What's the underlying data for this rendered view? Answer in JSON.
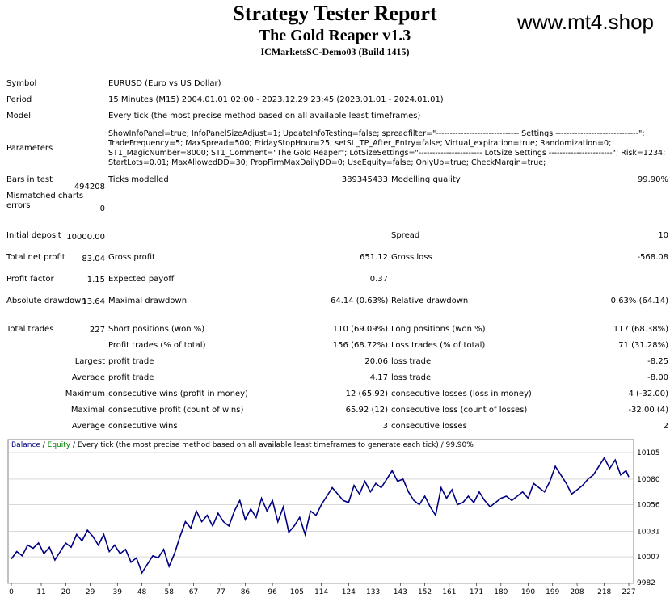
{
  "header": {
    "title": "Strategy Tester Report",
    "subtitle": "The Gold Reaper v1.3",
    "server": "ICMarketsSC-Demo03 (Build 1415)",
    "site": "www.mt4.shop"
  },
  "info": {
    "symbol_label": "Symbol",
    "symbol": "EURUSD (Euro vs US Dollar)",
    "period_label": "Period",
    "period": "15 Minutes (M15) 2004.01.01 02:00 - 2023.12.29 23:45 (2023.01.01 - 2024.01.01)",
    "model_label": "Model",
    "model": "Every tick (the most precise method based on all available least timeframes)",
    "params_label": "Parameters",
    "params": "ShowInfoPanel=true; InfoPanelSizeAdjust=1; UpdateInfoTesting=false; spreadfilter=\"------------------------------ Settings ------------------------------\"; TradeFrequency=5; MaxSpread=500; FridayStopHour=25; setSL_TP_After_Entry=false; Virtual_expiration=true; Randomization=0; ST1_MagicNumber=8000; ST1_Comment=\"The Gold Reaper\"; LotSizeSettings=\"----------------------- LotSize Settings -----------------------\"; Risk=1234; StartLots=0.01; MaxAllowedDD=30; PropFirmMaxDailyDD=0; UseEquity=false; OnlyUp=true; CheckMargin=true;"
  },
  "stats": {
    "bars_label": "Bars in test",
    "bars": "494208",
    "ticks_label": "Ticks modelled",
    "ticks": "389345433",
    "quality_label": "Modelling quality",
    "quality": "99.90%",
    "mismatch_label": "Mismatched charts errors",
    "mismatch": "0",
    "deposit_label": "Initial deposit",
    "deposit": "10000.00",
    "spread_label": "Spread",
    "spread": "10",
    "net_label": "Total net profit",
    "net": "83.04",
    "gross_profit_label": "Gross profit",
    "gross_profit": "651.12",
    "gross_loss_label": "Gross loss",
    "gross_loss": "-568.08",
    "pf_label": "Profit factor",
    "pf": "1.15",
    "payoff_label": "Expected payoff",
    "payoff": "0.37",
    "abs_dd_label": "Absolute drawdown",
    "abs_dd": "13.64",
    "max_dd_label": "Maximal drawdown",
    "max_dd": "64.14 (0.63%)",
    "rel_dd_label": "Relative drawdown",
    "rel_dd": "0.63% (64.14)",
    "trades_label": "Total trades",
    "trades": "227",
    "short_label": "Short positions (won %)",
    "short": "110 (69.09%)",
    "long_label": "Long positions (won %)",
    "long": "117 (68.38%)",
    "profit_trades_label": "Profit trades (% of total)",
    "profit_trades": "156 (68.72%)",
    "loss_trades_label": "Loss trades (% of total)",
    "loss_trades": "71 (31.28%)",
    "largest_label": "Largest",
    "largest_profit_label": "profit trade",
    "largest_profit": "20.06",
    "largest_loss_label": "loss trade",
    "largest_loss": "-8.25",
    "average_label": "Average",
    "avg_profit_label": "profit trade",
    "avg_profit": "4.17",
    "avg_loss_label": "loss trade",
    "avg_loss": "-8.00",
    "maximum_label": "Maximum",
    "max_wins_label": "consecutive wins (profit in money)",
    "max_wins": "12 (65.92)",
    "max_losses_label": "consecutive losses (loss in money)",
    "max_losses": "4 (-32.00)",
    "maximal_label": "Maximal",
    "maximal_profit_label": "consecutive profit (count of wins)",
    "maximal_profit": "65.92 (12)",
    "maximal_loss_label": "consecutive loss (count of losses)",
    "maximal_loss": "-32.00 (4)",
    "average2_label": "Average",
    "avg_wins_label": "consecutive wins",
    "avg_wins": "3",
    "avg_losses_label": "consecutive losses",
    "avg_losses": "2"
  },
  "chart_data": {
    "type": "line",
    "legend_balance": "Balance",
    "legend_sep1": " / ",
    "legend_equity": "Equity",
    "legend_rest": " / Every tick (the most precise method based on all available least timeframes to generate each tick) / 99.90%",
    "xticks": [
      "0",
      "11",
      "20",
      "29",
      "39",
      "48",
      "58",
      "67",
      "77",
      "86",
      "96",
      "105",
      "114",
      "124",
      "133",
      "143",
      "152",
      "161",
      "171",
      "180",
      "190",
      "199",
      "208",
      "218",
      "227"
    ],
    "yticks": [
      "10105",
      "10080",
      "10056",
      "10031",
      "10007",
      "9982"
    ],
    "ylim": [
      9982,
      10105
    ],
    "xlim": [
      0,
      227
    ],
    "colors": {
      "balance": "#000080",
      "equity": "#008000",
      "grid": "#c0c0c0"
    },
    "series": [
      {
        "name": "Balance",
        "x": [
          0,
          2,
          4,
          6,
          8,
          10,
          12,
          14,
          16,
          18,
          20,
          22,
          24,
          26,
          28,
          30,
          32,
          34,
          36,
          38,
          40,
          42,
          44,
          46,
          48,
          50,
          52,
          54,
          56,
          58,
          60,
          62,
          64,
          66,
          68,
          70,
          72,
          74,
          76,
          78,
          80,
          82,
          84,
          86,
          88,
          90,
          92,
          94,
          96,
          98,
          100,
          102,
          104,
          106,
          108,
          110,
          112,
          114,
          116,
          118,
          120,
          122,
          124,
          126,
          128,
          130,
          132,
          134,
          136,
          138,
          140,
          142,
          144,
          146,
          148,
          150,
          152,
          154,
          156,
          158,
          160,
          162,
          164,
          166,
          168,
          170,
          172,
          174,
          176,
          178,
          180,
          182,
          184,
          186,
          188,
          190,
          192,
          194,
          196,
          198,
          200,
          202,
          204,
          206,
          208,
          210,
          212,
          214,
          216,
          218,
          220,
          222,
          224,
          226,
          227
        ],
        "y": [
          10005,
          10012,
          10008,
          10018,
          10015,
          10020,
          10010,
          10016,
          10004,
          10012,
          10020,
          10016,
          10028,
          10022,
          10032,
          10026,
          10018,
          10028,
          10012,
          10018,
          10010,
          10014,
          10002,
          10006,
          9992,
          10000,
          10008,
          10006,
          10014,
          9998,
          10010,
          10026,
          10040,
          10034,
          10050,
          10040,
          10046,
          10036,
          10048,
          10040,
          10036,
          10050,
          10060,
          10042,
          10052,
          10044,
          10062,
          10050,
          10060,
          10040,
          10054,
          10030,
          10036,
          10044,
          10028,
          10050,
          10046,
          10056,
          10064,
          10072,
          10066,
          10060,
          10058,
          10074,
          10066,
          10078,
          10068,
          10076,
          10072,
          10080,
          10088,
          10078,
          10080,
          10068,
          10060,
          10056,
          10064,
          10054,
          10046,
          10072,
          10062,
          10070,
          10056,
          10058,
          10064,
          10058,
          10068,
          10060,
          10054,
          10058,
          10062,
          10064,
          10060,
          10064,
          10068,
          10062,
          10076,
          10072,
          10068,
          10078,
          10092,
          10084,
          10076,
          10066,
          10070,
          10074,
          10080,
          10084,
          10092,
          10100,
          10090,
          10098,
          10084,
          10088,
          10082
        ]
      }
    ]
  }
}
